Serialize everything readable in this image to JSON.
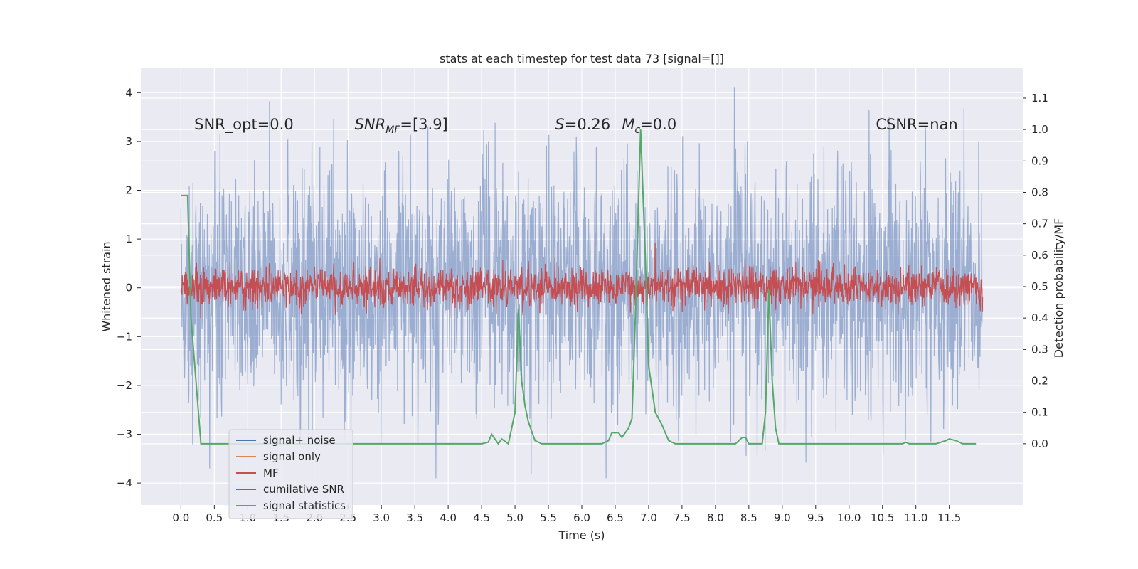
{
  "chart_data": {
    "type": "line",
    "title": "stats at each timestep for test data 73 [signal=[]]",
    "xlabel": "Time (s)",
    "ylabel": "Whitened strain",
    "ylabel_right": "Detection probability/MF",
    "xlim": [
      -0.6,
      12.6
    ],
    "ylim": [
      -4.45,
      4.5
    ],
    "ylim_right": [
      -0.195,
      1.195
    ],
    "x_ticks": [
      0.0,
      0.5,
      1.0,
      1.5,
      2.0,
      2.5,
      3.0,
      3.5,
      4.0,
      4.5,
      5.0,
      5.5,
      6.0,
      6.5,
      7.0,
      7.5,
      8.0,
      8.5,
      9.0,
      9.5,
      10.0,
      10.5,
      11.0,
      11.5
    ],
    "x_tick_labels": [
      "0.0",
      "0.5",
      "1.0",
      "1.5",
      "2.0",
      "2.5",
      "3.0",
      "3.5",
      "4.0",
      "4.5",
      "5.0",
      "5.5",
      "6.0",
      "6.5",
      "7.0",
      "7.5",
      "8.0",
      "8.5",
      "9.0",
      "9.5",
      "10.0",
      "10.5",
      "11.0",
      "11.5"
    ],
    "y_ticks": [
      -4,
      -3,
      -2,
      -1,
      0,
      1,
      2,
      3,
      4
    ],
    "y_tick_labels": [
      "−4",
      "−3",
      "−2",
      "−1",
      "0",
      "1",
      "2",
      "3",
      "4"
    ],
    "y_right_ticks": [
      0.0,
      0.1,
      0.2,
      0.3,
      0.4,
      0.5,
      0.6,
      0.7,
      0.8,
      0.9,
      1.0,
      1.1
    ],
    "y_right_tick_labels": [
      "0.0",
      "0.1",
      "0.2",
      "0.3",
      "0.4",
      "0.5",
      "0.6",
      "0.7",
      "0.8",
      "0.9",
      "1.0",
      "1.1"
    ],
    "grid": true,
    "legend_position": "lower-left",
    "annotations": [
      {
        "text": "SNR_opt=0.0",
        "x": 0.2,
        "y": 3.25
      },
      {
        "text": "SNR_MF=[3.9]",
        "x": 2.6,
        "y": 3.25
      },
      {
        "text": "S=0.26",
        "x": 5.6,
        "y": 3.25
      },
      {
        "text": "M_c=0.0",
        "x": 6.6,
        "y": 3.25
      },
      {
        "text": "CSNR=nan",
        "x": 10.4,
        "y": 3.25
      }
    ],
    "series": [
      {
        "name": "signal+ noise",
        "color": "#4c72b0",
        "axis": "left",
        "kind": "noise",
        "amplitude_range": [
          -3.9,
          4.1
        ],
        "t_range": [
          0.0,
          12.0
        ]
      },
      {
        "name": "signal only",
        "color": "#dd8452",
        "axis": "left",
        "kind": "flat",
        "values": []
      },
      {
        "name": "MF",
        "color": "#c44e52",
        "axis": "right",
        "kind": "mf",
        "range": [
          0.4,
          0.64
        ],
        "t_range": [
          0.0,
          12.0
        ]
      },
      {
        "name": "cumilative SNR",
        "color": "#4c72b0",
        "axis": "left",
        "kind": "flat",
        "values": []
      },
      {
        "name": "signal statistics",
        "color": "#55a868",
        "axis": "right",
        "kind": "line",
        "x": [
          0.0,
          0.06,
          0.1,
          0.15,
          0.3,
          0.5,
          1.0,
          2.0,
          2.5,
          2.7,
          3.0,
          4.0,
          4.5,
          4.6,
          4.65,
          4.75,
          4.8,
          4.9,
          5.0,
          5.05,
          5.1,
          5.15,
          5.2,
          5.3,
          5.4,
          5.5,
          6.0,
          6.3,
          6.4,
          6.45,
          6.55,
          6.6,
          6.7,
          6.75,
          6.8,
          6.88,
          6.95,
          7.0,
          7.1,
          7.2,
          7.3,
          7.4,
          7.5,
          8.0,
          8.3,
          8.4,
          8.45,
          8.5,
          8.6,
          8.7,
          8.75,
          8.8,
          8.85,
          8.9,
          8.95,
          9.0,
          9.5,
          10.0,
          10.5,
          10.8,
          10.85,
          10.9,
          11.0,
          11.3,
          11.45,
          11.5,
          11.6,
          11.7,
          11.8,
          11.9
        ],
        "y": [
          0.79,
          0.79,
          0.79,
          0.4,
          0.0,
          0.0,
          0.0,
          0.0,
          0.0,
          0.0,
          0.0,
          0.0,
          0.0,
          0.005,
          0.03,
          0.0,
          0.015,
          0.0,
          0.1,
          0.43,
          0.2,
          0.12,
          0.07,
          0.01,
          0.0,
          0.0,
          0.0,
          0.0,
          0.01,
          0.035,
          0.035,
          0.02,
          0.05,
          0.08,
          0.4,
          1.0,
          0.6,
          0.25,
          0.1,
          0.06,
          0.01,
          0.0,
          0.0,
          0.0,
          0.0,
          0.02,
          0.02,
          0.0,
          0.0,
          0.0,
          0.1,
          0.49,
          0.2,
          0.05,
          0.0,
          0.0,
          0.0,
          0.0,
          0.0,
          0.0,
          0.005,
          0.0,
          0.0,
          0.0,
          0.01,
          0.015,
          0.01,
          0.0,
          0.0,
          0.0
        ]
      }
    ]
  }
}
